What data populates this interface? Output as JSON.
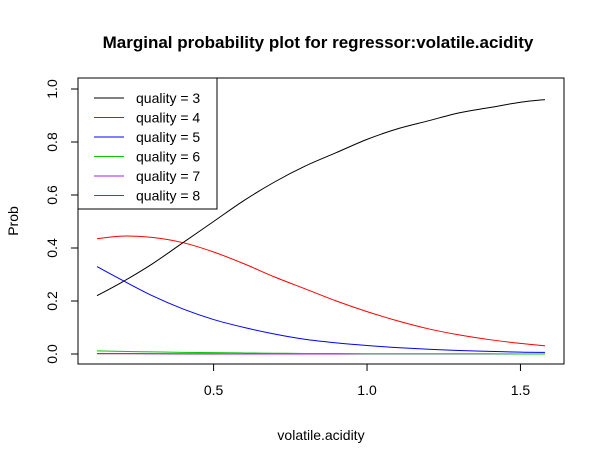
{
  "chart_data": {
    "type": "line",
    "title": "Marginal probability plot for regressor:volatile.acidity",
    "xlabel": "volatile.acidity",
    "ylabel": "Prob",
    "xlim": [
      0.12,
      1.58
    ],
    "ylim": [
      0.0,
      1.0
    ],
    "xticks": [
      0.5,
      1.0,
      1.5
    ],
    "yticks": [
      0.0,
      0.2,
      0.4,
      0.6,
      0.8,
      1.0
    ],
    "grid": false,
    "legend_position": "top-left",
    "x": [
      0.12,
      0.2,
      0.3,
      0.4,
      0.5,
      0.6,
      0.7,
      0.8,
      0.9,
      1.0,
      1.1,
      1.2,
      1.3,
      1.4,
      1.5,
      1.58
    ],
    "series": [
      {
        "name": "quality = 3",
        "color": "#000000",
        "values": [
          0.22,
          0.27,
          0.34,
          0.42,
          0.5,
          0.58,
          0.65,
          0.71,
          0.76,
          0.81,
          0.85,
          0.88,
          0.91,
          0.93,
          0.95,
          0.96
        ]
      },
      {
        "name": "quality = 4",
        "color": "#ff0000",
        "values": [
          0.435,
          0.445,
          0.44,
          0.42,
          0.385,
          0.34,
          0.29,
          0.245,
          0.2,
          0.16,
          0.125,
          0.095,
          0.072,
          0.054,
          0.04,
          0.031
        ]
      },
      {
        "name": "quality = 5",
        "color": "#0000ff",
        "values": [
          0.33,
          0.28,
          0.22,
          0.17,
          0.13,
          0.1,
          0.075,
          0.055,
          0.042,
          0.032,
          0.024,
          0.018,
          0.013,
          0.01,
          0.007,
          0.006
        ]
      },
      {
        "name": "quality = 6",
        "color": "#00cc00",
        "values": [
          0.012,
          0.01,
          0.008,
          0.006,
          0.005,
          0.004,
          0.003,
          0.002,
          0.002,
          0.001,
          0.001,
          0.001,
          0.001,
          0.001,
          0.0,
          0.0
        ]
      },
      {
        "name": "quality = 7",
        "color": "#a020f0",
        "values": [
          0.002,
          0.002,
          0.001,
          0.001,
          0.001,
          0.0,
          0.0,
          0.0,
          0.0,
          0.0,
          0.0,
          0.0,
          0.0,
          0.0,
          0.0,
          0.0
        ]
      },
      {
        "name": "quality = 8",
        "color": "#8b3a3a",
        "values": [
          0.001,
          0.001,
          0.001,
          0.0,
          0.0,
          0.0,
          0.0,
          0.0,
          0.0,
          0.0,
          0.0,
          0.0,
          0.0,
          0.0,
          0.0,
          0.0
        ]
      }
    ]
  }
}
